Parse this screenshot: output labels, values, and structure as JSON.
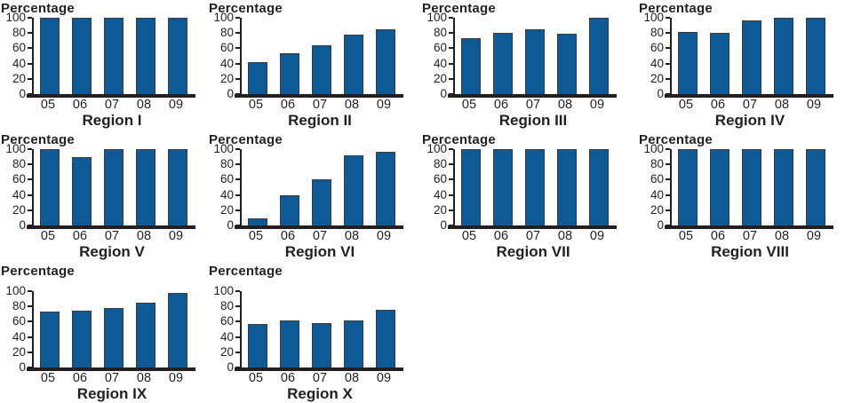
{
  "page": {
    "background": "#ffffff"
  },
  "colors": {
    "bar_fill": "#0E5A96",
    "bar_border": "#3B3B3C",
    "axis": "#231F20",
    "text": "#231F20"
  },
  "chart_data": [
    {
      "type": "bar",
      "title": "Region I",
      "ylabel": "Percentage",
      "categories": [
        "05",
        "06",
        "07",
        "08",
        "09"
      ],
      "values": [
        100,
        100,
        100,
        100,
        100
      ],
      "ylim": [
        0,
        100
      ],
      "yticks": [
        0,
        20,
        40,
        60,
        80,
        100
      ],
      "grid": false
    },
    {
      "type": "bar",
      "title": "Region II",
      "ylabel": "Percentage",
      "categories": [
        "05",
        "06",
        "07",
        "08",
        "09"
      ],
      "values": [
        42,
        53,
        64,
        78,
        85
      ],
      "ylim": [
        0,
        100
      ],
      "yticks": [
        0,
        20,
        40,
        60,
        80,
        100
      ],
      "grid": false
    },
    {
      "type": "bar",
      "title": "Region III",
      "ylabel": "Percentage",
      "categories": [
        "05",
        "06",
        "07",
        "08",
        "09"
      ],
      "values": [
        73,
        80,
        85,
        79,
        100
      ],
      "ylim": [
        0,
        100
      ],
      "yticks": [
        0,
        20,
        40,
        60,
        80,
        100
      ],
      "grid": false
    },
    {
      "type": "bar",
      "title": "Region IV",
      "ylabel": "Percentage",
      "categories": [
        "05",
        "06",
        "07",
        "08",
        "09"
      ],
      "values": [
        81,
        80,
        96,
        100,
        100
      ],
      "ylim": [
        0,
        100
      ],
      "yticks": [
        0,
        20,
        40,
        60,
        80,
        100
      ],
      "grid": false
    },
    {
      "type": "bar",
      "title": "Region V",
      "ylabel": "Percentage",
      "categories": [
        "05",
        "06",
        "07",
        "08",
        "09"
      ],
      "values": [
        100,
        90,
        100,
        100,
        100
      ],
      "ylim": [
        0,
        100
      ],
      "yticks": [
        0,
        20,
        40,
        60,
        80,
        100
      ],
      "grid": false
    },
    {
      "type": "bar",
      "title": "Region VI",
      "ylabel": "Percentage",
      "categories": [
        "05",
        "06",
        "07",
        "08",
        "09"
      ],
      "values": [
        9,
        39,
        61,
        92,
        96
      ],
      "ylim": [
        0,
        100
      ],
      "yticks": [
        0,
        20,
        40,
        60,
        80,
        100
      ],
      "grid": false
    },
    {
      "type": "bar",
      "title": "Region VII",
      "ylabel": "Percentage",
      "categories": [
        "05",
        "06",
        "07",
        "08",
        "09"
      ],
      "values": [
        100,
        100,
        100,
        100,
        100
      ],
      "ylim": [
        0,
        100
      ],
      "yticks": [
        0,
        20,
        40,
        60,
        80,
        100
      ],
      "grid": false
    },
    {
      "type": "bar",
      "title": "Region VIII",
      "ylabel": "Percentage",
      "categories": [
        "05",
        "06",
        "07",
        "08",
        "09"
      ],
      "values": [
        100,
        100,
        100,
        100,
        100
      ],
      "ylim": [
        0,
        100
      ],
      "yticks": [
        0,
        20,
        40,
        60,
        80,
        100
      ],
      "grid": false
    },
    {
      "type": "bar",
      "title": "Region IX",
      "ylabel": "Percentage",
      "categories": [
        "05",
        "06",
        "07",
        "08",
        "09"
      ],
      "values": [
        73,
        75,
        78,
        85,
        98
      ],
      "ylim": [
        0,
        100
      ],
      "yticks": [
        0,
        20,
        40,
        60,
        80,
        100
      ],
      "grid": false
    },
    {
      "type": "bar",
      "title": "Region X",
      "ylabel": "Percentage",
      "categories": [
        "05",
        "06",
        "07",
        "08",
        "09"
      ],
      "values": [
        57,
        62,
        58,
        62,
        76
      ],
      "ylim": [
        0,
        100
      ],
      "yticks": [
        0,
        20,
        40,
        60,
        80,
        100
      ],
      "grid": false
    }
  ]
}
